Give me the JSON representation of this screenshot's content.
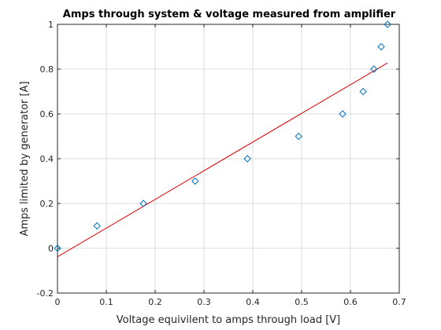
{
  "chart_data": {
    "type": "scatter",
    "title": "Amps through system & voltage measured from amplifier",
    "xlabel": "Voltage equivilent to amps through load [V]",
    "ylabel": "Amps limited by generator [A]",
    "xlim": [
      0,
      0.7
    ],
    "ylim": [
      -0.2,
      1
    ],
    "xticks": [
      "0",
      "0.1",
      "0.2",
      "0.3",
      "0.4",
      "0.5",
      "0.6",
      "0.7"
    ],
    "yticks": [
      "-0.2",
      "0",
      "0.2",
      "0.4",
      "0.6",
      "0.8",
      "1"
    ],
    "grid": true,
    "series": [
      {
        "marker": "diamond",
        "color": "#0072bd",
        "x": [
          0.0,
          0.081,
          0.176,
          0.282,
          0.389,
          0.494,
          0.584,
          0.626,
          0.648,
          0.663,
          0.676
        ],
        "y": [
          0.0,
          0.1,
          0.2,
          0.3,
          0.4,
          0.5,
          0.6,
          0.7,
          0.8,
          0.9,
          1.0
        ]
      },
      {
        "type": "line",
        "color": "#e00000",
        "x": [
          0.0,
          0.676
        ],
        "y": [
          -0.038,
          0.828
        ]
      }
    ]
  }
}
